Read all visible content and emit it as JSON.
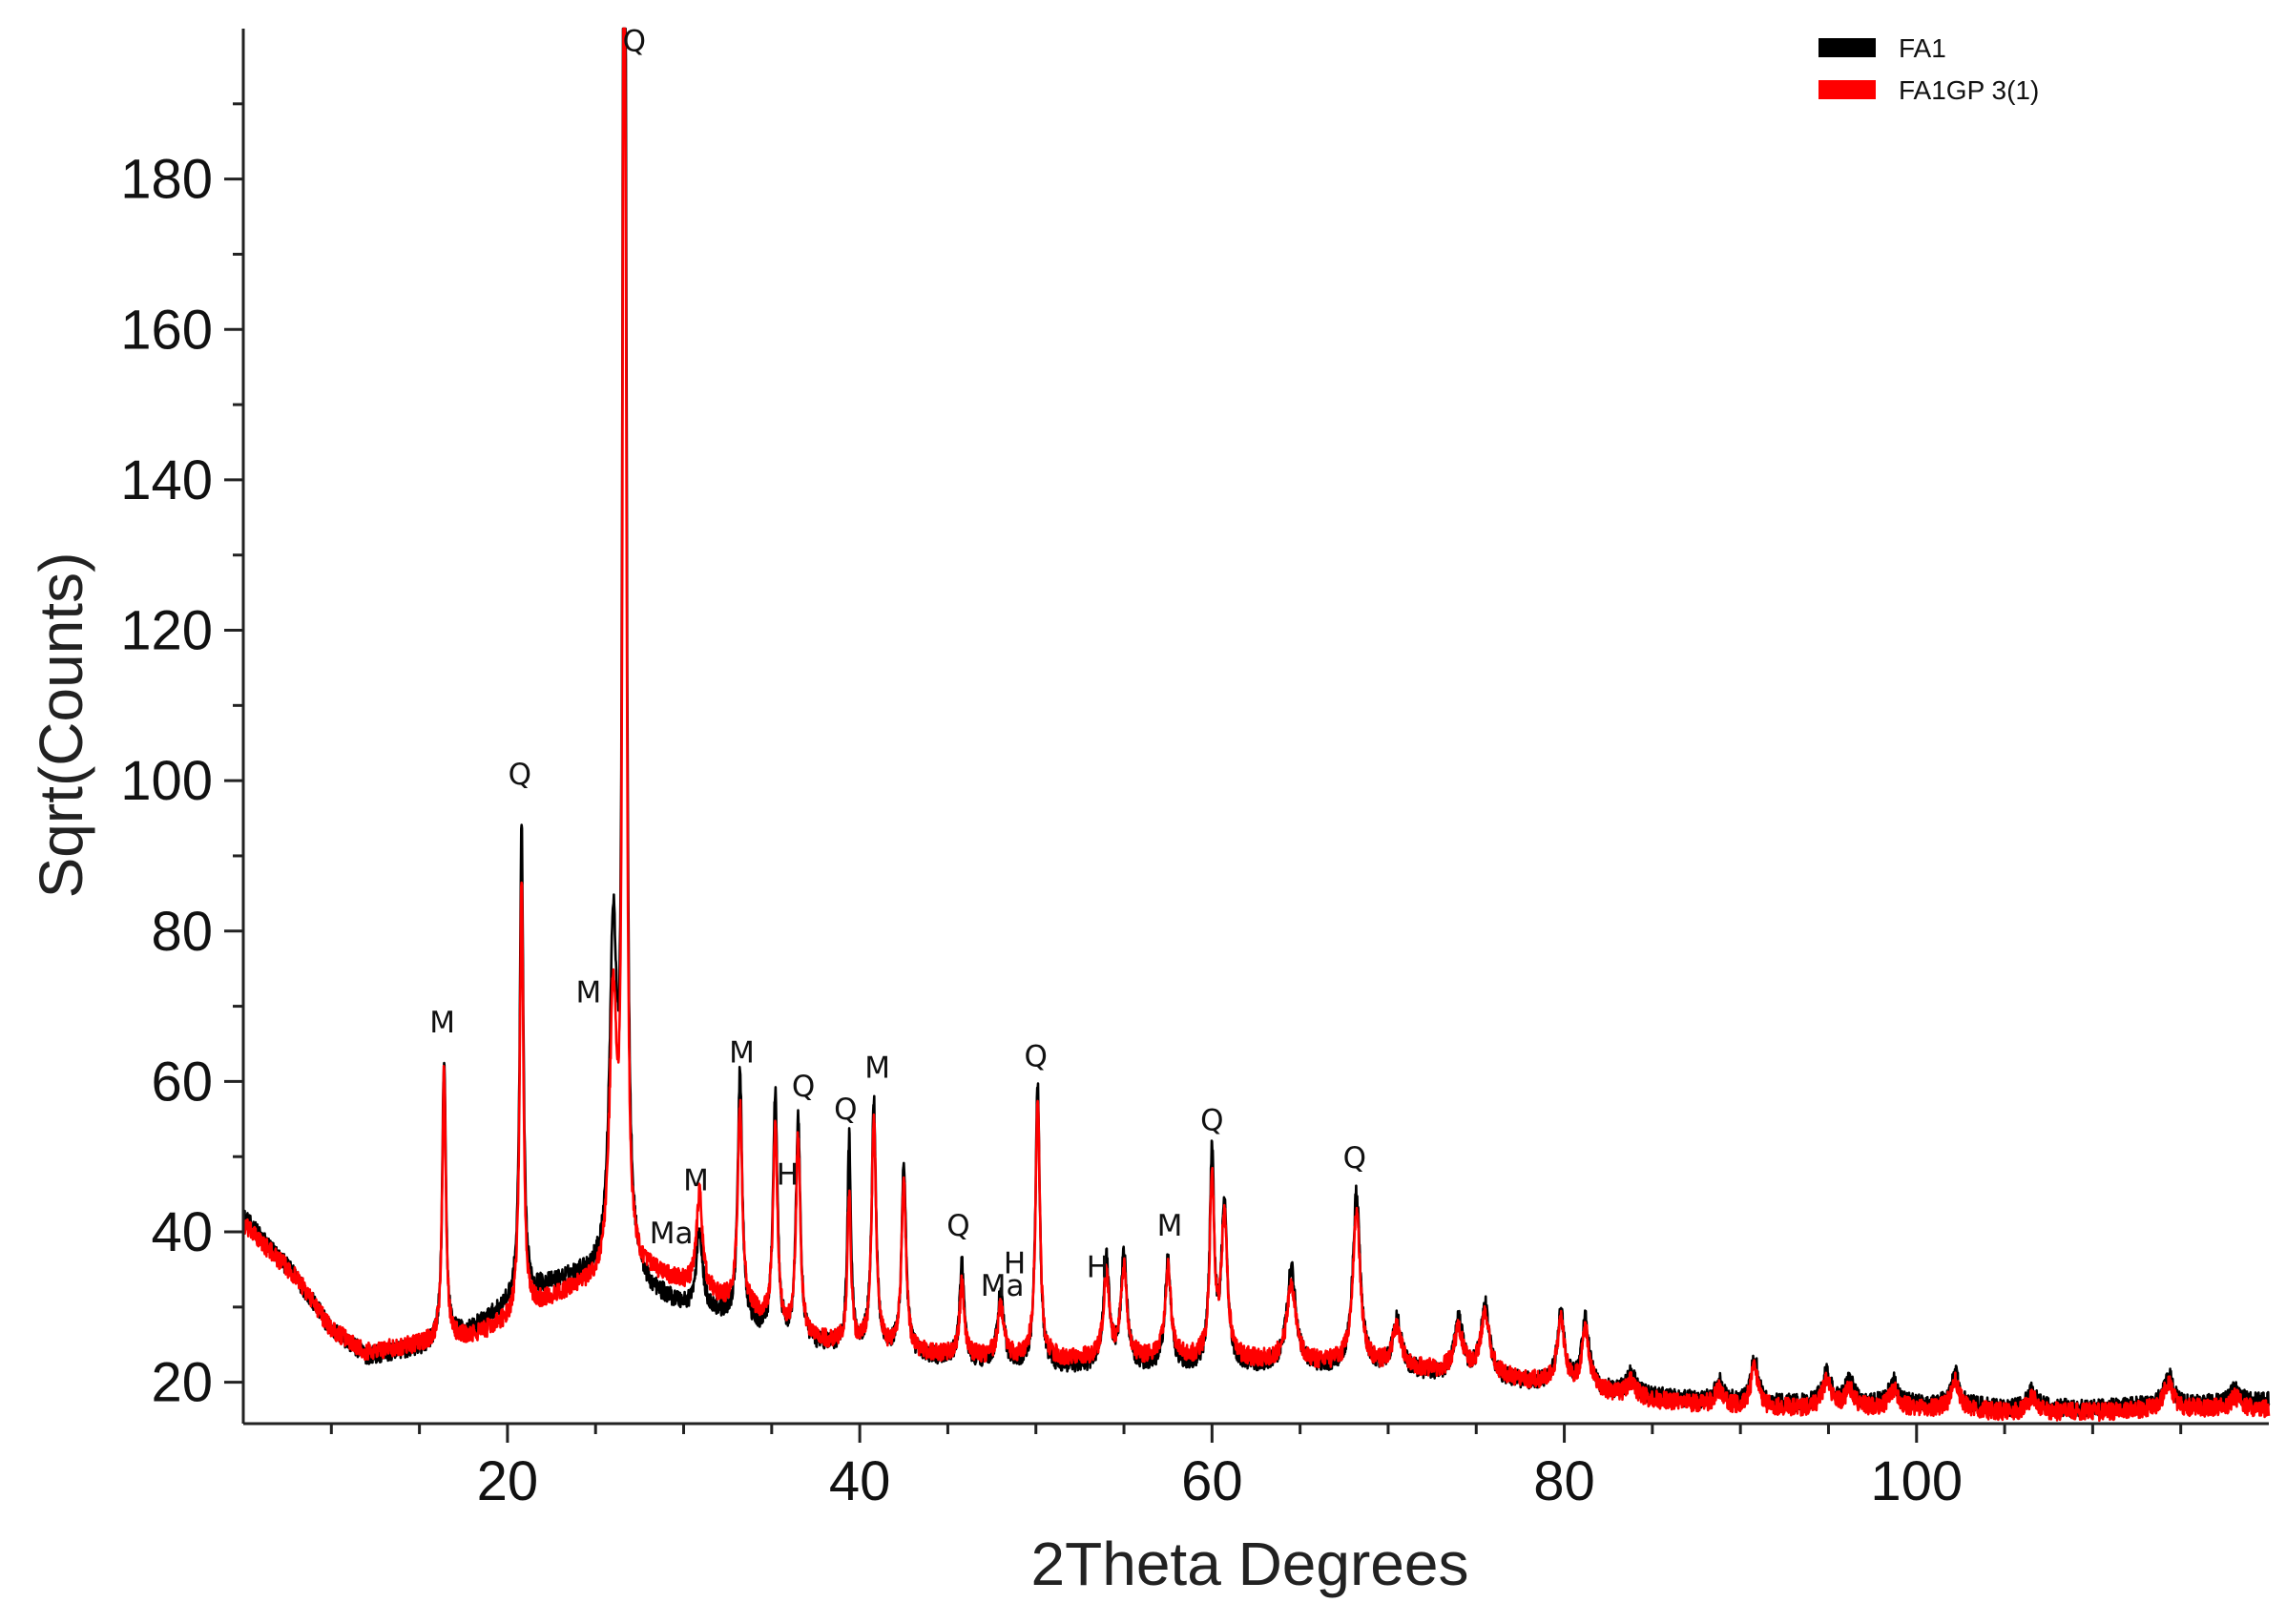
{
  "chart_data": {
    "type": "line",
    "title": "",
    "xlabel": "2Theta Degrees",
    "ylabel": "Sqrt(Counts)",
    "xlim": [
      5,
      120
    ],
    "ylim": [
      14.5,
      200
    ],
    "xticks": [
      20,
      40,
      60,
      80,
      100
    ],
    "yticks": [
      20,
      40,
      60,
      80,
      100,
      120,
      140,
      160,
      180
    ],
    "grid": false,
    "legend_position": "top-right",
    "series": [
      {
        "name": "FA1",
        "color": "#000000",
        "background": [
          [
            5,
            42
          ],
          [
            8,
            34
          ],
          [
            10,
            27
          ],
          [
            12,
            23.5
          ],
          [
            15,
            24.5
          ],
          [
            18,
            27
          ],
          [
            20,
            30
          ],
          [
            22,
            32.5
          ],
          [
            24,
            34
          ],
          [
            26,
            34
          ],
          [
            26.8,
            36
          ],
          [
            28,
            32
          ],
          [
            30,
            30
          ],
          [
            32,
            29
          ],
          [
            34,
            27
          ],
          [
            36,
            25
          ],
          [
            40,
            24.5
          ],
          [
            45,
            23
          ],
          [
            50,
            22
          ],
          [
            55,
            22
          ],
          [
            60,
            22
          ],
          [
            65,
            22
          ],
          [
            70,
            21.5
          ],
          [
            75,
            20.5
          ],
          [
            80,
            19.5
          ],
          [
            85,
            18
          ],
          [
            90,
            17
          ],
          [
            95,
            17
          ],
          [
            100,
            17
          ],
          [
            105,
            16.5
          ],
          [
            110,
            16.5
          ],
          [
            115,
            17
          ],
          [
            120,
            17.5
          ]
        ],
        "peaks": [
          [
            16.4,
            63,
            0.12
          ],
          [
            20.8,
            94,
            0.12
          ],
          [
            26.0,
            79,
            0.25
          ],
          [
            26.6,
            200,
            0.08
          ],
          [
            26.7,
            146,
            0.1
          ],
          [
            30.9,
            40,
            0.2
          ],
          [
            33.2,
            61,
            0.15
          ],
          [
            35.2,
            58,
            0.15
          ],
          [
            36.5,
            55,
            0.15
          ],
          [
            39.4,
            52,
            0.12
          ],
          [
            40.8,
            57,
            0.15
          ],
          [
            42.5,
            49,
            0.15
          ],
          [
            45.8,
            36,
            0.15
          ],
          [
            48.0,
            32,
            0.2
          ],
          [
            50.1,
            59,
            0.15
          ],
          [
            54.0,
            36,
            0.2
          ],
          [
            55.0,
            37,
            0.2
          ],
          [
            57.5,
            36,
            0.2
          ],
          [
            60.0,
            50,
            0.15
          ],
          [
            60.7,
            43,
            0.2
          ],
          [
            64.5,
            35,
            0.3
          ],
          [
            68.2,
            45,
            0.25
          ],
          [
            70.5,
            28,
            0.3
          ],
          [
            74.0,
            28,
            0.3
          ],
          [
            75.5,
            30,
            0.3
          ],
          [
            79.8,
            29,
            0.25
          ],
          [
            81.2,
            28,
            0.25
          ],
          [
            83.8,
            21,
            0.3
          ],
          [
            88.8,
            20,
            0.3
          ],
          [
            90.8,
            23,
            0.25
          ],
          [
            94.9,
            21,
            0.3
          ],
          [
            96.2,
            20,
            0.3
          ],
          [
            98.7,
            20,
            0.3
          ],
          [
            102.2,
            21,
            0.3
          ],
          [
            106.6,
            19,
            0.3
          ],
          [
            114.3,
            21,
            0.3
          ],
          [
            118.1,
            19,
            0.3
          ]
        ]
      },
      {
        "name": "FA1GP 3(1)",
        "color": "#ff0000",
        "background": [
          [
            5,
            41
          ],
          [
            8,
            34
          ],
          [
            10,
            27
          ],
          [
            12,
            24
          ],
          [
            15,
            25
          ],
          [
            18,
            26
          ],
          [
            20,
            28
          ],
          [
            22,
            30.5
          ],
          [
            24,
            32.5
          ],
          [
            26,
            33
          ],
          [
            26.8,
            35
          ],
          [
            28,
            34.5
          ],
          [
            30,
            33
          ],
          [
            32,
            31
          ],
          [
            34,
            29
          ],
          [
            36,
            26
          ],
          [
            40,
            24.5
          ],
          [
            45,
            23.5
          ],
          [
            50,
            23
          ],
          [
            55,
            23
          ],
          [
            60,
            23
          ],
          [
            65,
            22.5
          ],
          [
            70,
            22
          ],
          [
            75,
            21
          ],
          [
            80,
            19.5
          ],
          [
            85,
            17.5
          ],
          [
            90,
            16.5
          ],
          [
            95,
            16.5
          ],
          [
            100,
            16.5
          ],
          [
            105,
            16
          ],
          [
            110,
            16
          ],
          [
            115,
            16.5
          ],
          [
            120,
            16.5
          ]
        ],
        "peaks": [
          [
            16.4,
            62,
            0.12
          ],
          [
            20.8,
            87,
            0.12
          ],
          [
            26.0,
            70,
            0.25
          ],
          [
            26.6,
            175,
            0.08
          ],
          [
            26.7,
            128,
            0.1
          ],
          [
            30.9,
            45,
            0.2
          ],
          [
            33.2,
            57,
            0.15
          ],
          [
            35.2,
            54,
            0.15
          ],
          [
            36.5,
            52,
            0.15
          ],
          [
            39.4,
            45,
            0.12
          ],
          [
            40.8,
            55,
            0.15
          ],
          [
            42.5,
            47,
            0.15
          ],
          [
            45.8,
            33,
            0.15
          ],
          [
            48.0,
            30,
            0.2
          ],
          [
            50.1,
            57,
            0.15
          ],
          [
            54.0,
            34,
            0.2
          ],
          [
            55.0,
            35,
            0.2
          ],
          [
            57.5,
            35,
            0.2
          ],
          [
            60.0,
            47,
            0.15
          ],
          [
            60.7,
            42,
            0.2
          ],
          [
            64.5,
            33,
            0.3
          ],
          [
            68.2,
            43,
            0.25
          ],
          [
            70.5,
            27,
            0.3
          ],
          [
            74.0,
            27,
            0.3
          ],
          [
            75.5,
            29,
            0.3
          ],
          [
            79.8,
            28,
            0.25
          ],
          [
            81.2,
            27,
            0.25
          ],
          [
            83.8,
            20,
            0.3
          ],
          [
            88.8,
            19,
            0.3
          ],
          [
            90.8,
            22,
            0.25
          ],
          [
            94.9,
            20,
            0.3
          ],
          [
            96.2,
            19,
            0.3
          ],
          [
            98.7,
            19,
            0.3
          ],
          [
            102.2,
            20,
            0.3
          ],
          [
            106.6,
            18,
            0.3
          ],
          [
            114.3,
            20,
            0.3
          ],
          [
            118.1,
            18,
            0.3
          ]
        ]
      }
    ],
    "annotations": [
      {
        "text": "Q",
        "x": 27.2,
        "y": 197
      },
      {
        "text": "Q",
        "x": 20.7,
        "y": 99.5
      },
      {
        "text": "M",
        "x": 16.3,
        "y": 66.5
      },
      {
        "text": "M",
        "x": 24.6,
        "y": 70.5
      },
      {
        "text": "Ma",
        "x": 29.3,
        "y": 38.5
      },
      {
        "text": "M",
        "x": 30.7,
        "y": 45.5
      },
      {
        "text": "M",
        "x": 33.3,
        "y": 62.5
      },
      {
        "text": "H",
        "x": 35.9,
        "y": 46.3
      },
      {
        "text": "Q",
        "x": 36.8,
        "y": 58
      },
      {
        "text": "Q",
        "x": 39.2,
        "y": 55
      },
      {
        "text": "M",
        "x": 41.0,
        "y": 60.5
      },
      {
        "text": "Q",
        "x": 45.6,
        "y": 39.5
      },
      {
        "text": "Ma",
        "x": 48.1,
        "y": 31.5
      },
      {
        "text": "H",
        "x": 48.8,
        "y": 34.5
      },
      {
        "text": "Q",
        "x": 50.0,
        "y": 62
      },
      {
        "text": "H",
        "x": 53.5,
        "y": 34
      },
      {
        "text": "M",
        "x": 57.6,
        "y": 39.5
      },
      {
        "text": "Q",
        "x": 60.0,
        "y": 53.5
      },
      {
        "text": "Q",
        "x": 68.1,
        "y": 48.5
      }
    ]
  }
}
